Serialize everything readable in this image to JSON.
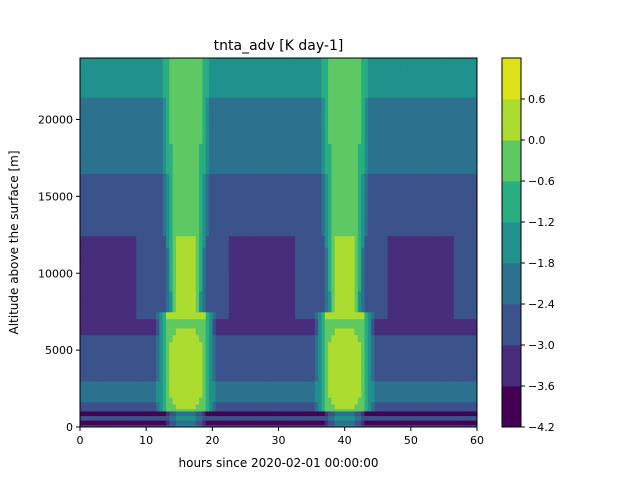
{
  "chart_data": {
    "type": "heatmap",
    "subtype": "filled-contour",
    "title": "tnta_adv [K day-1]",
    "xlabel": "hours since 2020-02-01 00:00:00",
    "ylabel": "Altitude above the surface [m]",
    "xlim": [
      0,
      60
    ],
    "ylim": [
      0,
      24000
    ],
    "x_ticks": [
      0,
      10,
      20,
      30,
      40,
      50,
      60
    ],
    "y_ticks": [
      0,
      5000,
      10000,
      15000,
      20000
    ],
    "colorbar": {
      "levels": [
        -4.2,
        -3.6,
        -3.0,
        -2.4,
        -1.8,
        -1.2,
        -0.6,
        0.0,
        0.6
      ],
      "tick_labels": [
        "−4.2",
        "−3.6",
        "−3.0",
        "−2.4",
        "−1.8",
        "−1.2",
        "−0.6",
        "0.0",
        "0.6"
      ],
      "colors": [
        "#440154",
        "#472d7b",
        "#3b528b",
        "#2c728e",
        "#21918c",
        "#28ae80",
        "#5ec962",
        "#addc30",
        "#dde318"
      ]
    },
    "field_description": {
      "period_hours": 24,
      "warm_column_center_hours": [
        16,
        40
      ],
      "warm_core_altitude_m": [
        1200,
        6500
      ],
      "cold_layer_altitude_m": [
        7000,
        12500
      ]
    },
    "grid": false
  }
}
